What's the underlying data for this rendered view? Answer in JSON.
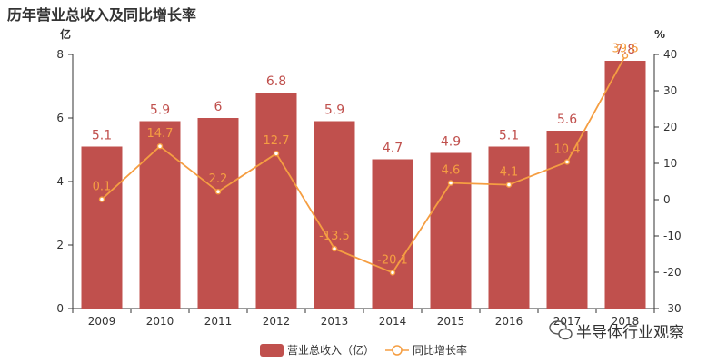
{
  "title": "历年营业总收入及同比增长率",
  "watermark": "半导体行业观察",
  "chart_data": {
    "type": "bar",
    "title": "历年营业总收入及同比增长率",
    "categories": [
      "2009",
      "2010",
      "2011",
      "2012",
      "2013",
      "2014",
      "2015",
      "2016",
      "2017",
      "2018"
    ],
    "left_axis_unit": "亿",
    "right_axis_unit": "%",
    "ylim": [
      0,
      8
    ],
    "y_ticks": [
      0,
      2,
      4,
      6,
      8
    ],
    "y2lim": [
      -30,
      40
    ],
    "y2_ticks": [
      -30,
      -20,
      -10,
      0,
      10,
      20,
      30,
      40
    ],
    "grid": false,
    "legend_position": "bottom-center",
    "series": [
      {
        "name": "营业总收入（亿）",
        "type": "bar",
        "axis": "left",
        "color": "#c0504d",
        "values": [
          5.1,
          5.9,
          6,
          6.8,
          5.9,
          4.7,
          4.9,
          5.1,
          5.6,
          7.8
        ],
        "labels": [
          "5.1",
          "5.9",
          "6",
          "6.8",
          "5.9",
          "4.7",
          "4.9",
          "5.1",
          "5.6",
          "7.8"
        ]
      },
      {
        "name": "同比增长率",
        "type": "line",
        "axis": "right",
        "color": "#f59e42",
        "values": [
          0.1,
          14.7,
          2.2,
          12.7,
          -13.5,
          -20.1,
          4.6,
          4.1,
          10.4,
          39.6
        ],
        "labels": [
          "0.1",
          "14.7",
          "2.2",
          "12.7",
          "-13.5",
          "-20.1",
          "4.6",
          "4.1",
          "10.4",
          "39.6"
        ]
      }
    ]
  }
}
